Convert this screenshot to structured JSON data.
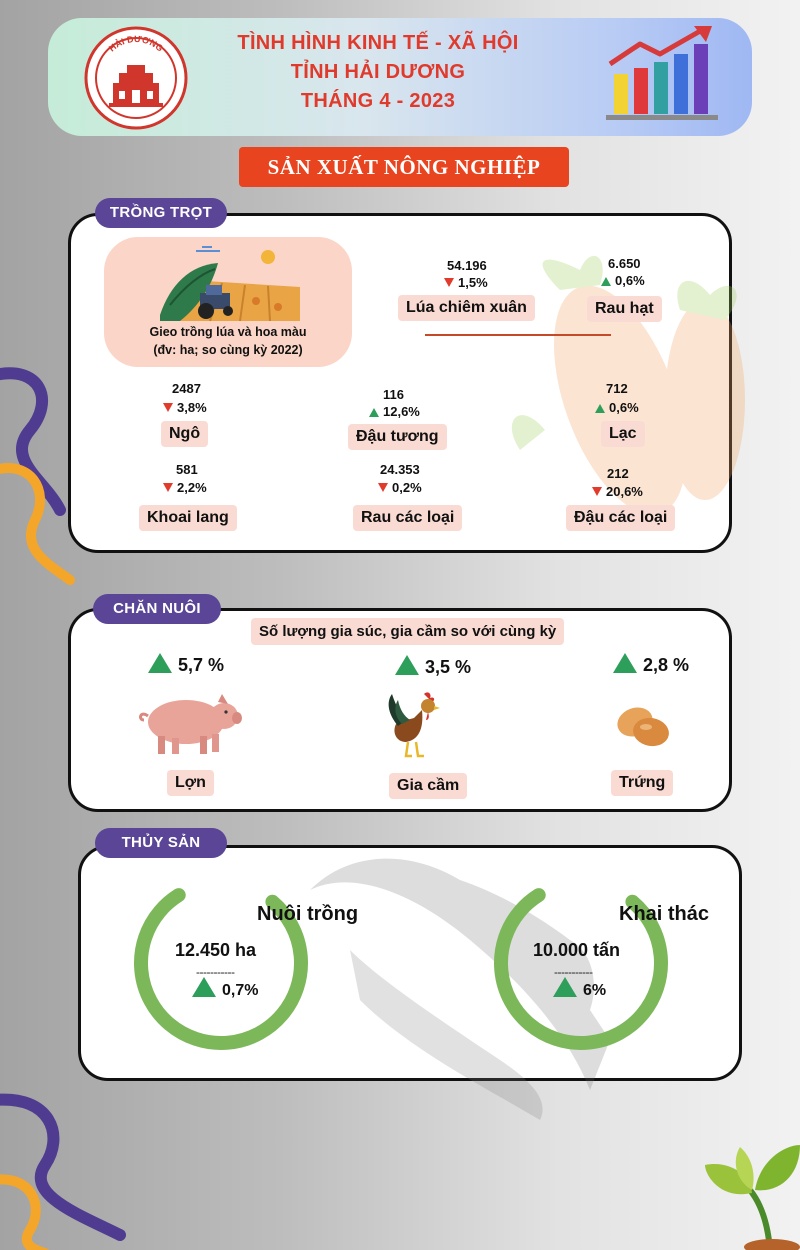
{
  "header": {
    "line1": "TÌNH HÌNH KINH TẾ - XÃ HỘI",
    "line2": "TỈNH HẢI DƯƠNG",
    "line3": "THÁNG 4 - 2023",
    "logo_text": "HẢI DƯƠNG",
    "chart_icon": "bar-chart-growth-icon"
  },
  "section_title": "SẢN XUẤT NÔNG NGHIỆP",
  "crops": {
    "tag": "TRỒNG TRỌT",
    "caption_line1": "Gieo trồng lúa và hoa màu",
    "caption_line2": "(đv: ha; so cùng kỳ 2022)",
    "items": [
      {
        "name": "Lúa chiêm xuân",
        "value": "54.196",
        "change": "1,5%",
        "direction": "down"
      },
      {
        "name": "Rau hạt",
        "value": "6.650",
        "change": "0,6%",
        "direction": "up"
      },
      {
        "name": "Ngô",
        "value": "2487",
        "change": "3,8%",
        "direction": "down"
      },
      {
        "name": "Đậu tương",
        "value": "116",
        "change": "12,6%",
        "direction": "up"
      },
      {
        "name": "Lạc",
        "value": "712",
        "change": "0,6%",
        "direction": "up"
      },
      {
        "name": "Khoai lang",
        "value": "581",
        "change": "2,2%",
        "direction": "down"
      },
      {
        "name": "Rau các loại",
        "value": "24.353",
        "change": "0,2%",
        "direction": "down"
      },
      {
        "name": "Đậu các loại",
        "value": "212",
        "change": "20,6%",
        "direction": "down"
      }
    ]
  },
  "livestock": {
    "tag": "CHĂN NUÔI",
    "subtitle": "Số lượng gia súc, gia cầm so với cùng kỳ",
    "items": [
      {
        "name": "Lợn",
        "change": "5,7 %",
        "direction": "up",
        "icon": "pig-icon"
      },
      {
        "name": "Gia cầm",
        "change": "3,5 %",
        "direction": "up",
        "icon": "rooster-icon"
      },
      {
        "name": "Trứng",
        "change": "2,8 %",
        "direction": "up",
        "icon": "eggs-icon"
      }
    ]
  },
  "aquaculture": {
    "tag": "THỦY SẢN",
    "items": [
      {
        "title": "Nuôi trồng",
        "value": "12.450 ha",
        "change": "0,7%",
        "direction": "up",
        "progress": 0.8
      },
      {
        "title": "Khai thác",
        "value": "10.000 tấn",
        "change": "6%",
        "direction": "up",
        "progress": 0.8
      }
    ]
  },
  "colors": {
    "accent_red": "#e03a2c",
    "banner_orange": "#e8441f",
    "tag_purple": "#5a4596",
    "up_green": "#2e9e5b",
    "down_red": "#e23b2b",
    "ring_green": "#7cb85a",
    "pill_pink": "#fadbd3"
  }
}
